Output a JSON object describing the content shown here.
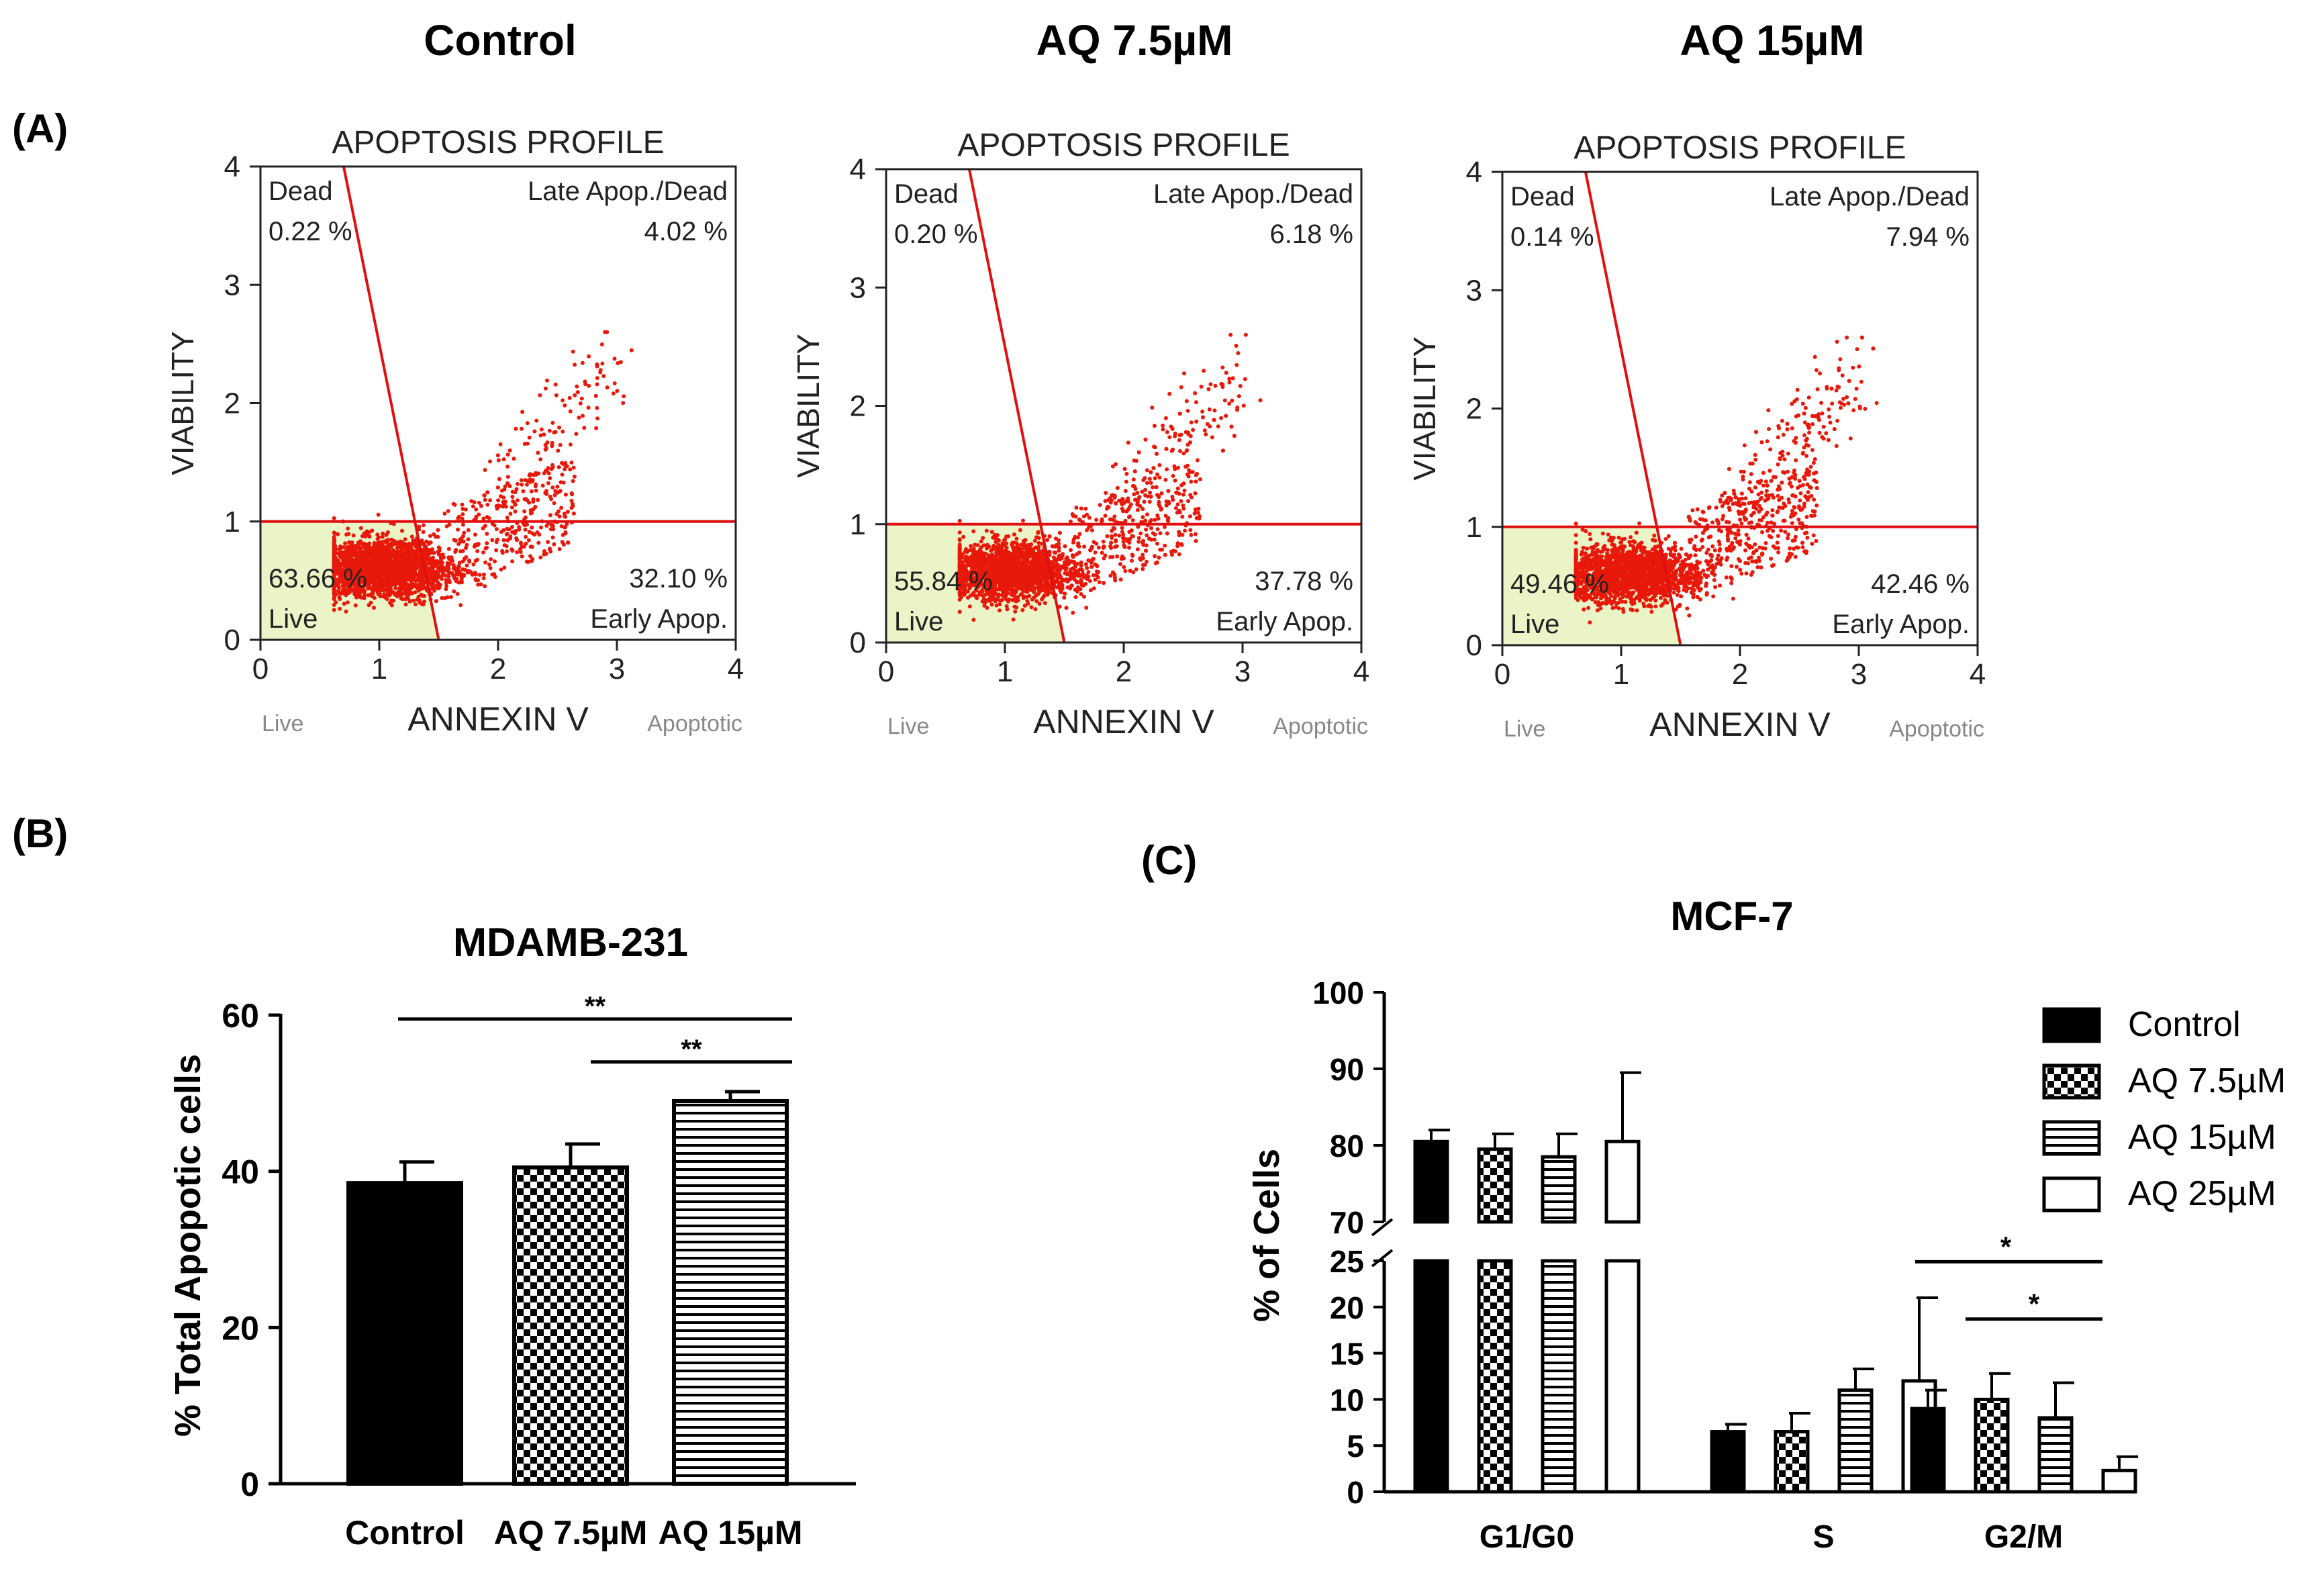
{
  "panel_labels": [
    "(A)",
    "(B)",
    "(C)"
  ],
  "panel_a_headings": [
    "Control",
    "AQ 7.5µM",
    "AQ 15µM"
  ],
  "colors": {
    "dot": "#e8190b",
    "live_fill": "#eaf4c6",
    "axis": "#000000",
    "gate_line": "#e01010",
    "flow_text": "#222222"
  },
  "chart_data": [
    {
      "type": "scatter",
      "panel": "A",
      "heading": "Control",
      "title": "APOPTOSIS PROFILE",
      "xlabel": "ANNEXIN V",
      "ylabel": "VIABILITY",
      "x_end_labels": [
        "Live",
        "Apoptotic"
      ],
      "xlim": [
        0,
        4
      ],
      "ylim": [
        0,
        4
      ],
      "xticks": [
        "0",
        "1",
        "2",
        "3",
        "4"
      ],
      "yticks": [
        "0",
        "1",
        "2",
        "3",
        "4"
      ],
      "quadrants": {
        "dead": {
          "label": "Dead",
          "value": "0.22 %"
        },
        "late": {
          "label": "Late Apop./Dead",
          "value": "4.02 %"
        },
        "live": {
          "label": "Live",
          "value": "63.66 %"
        },
        "early": {
          "label": "Early Apop.",
          "value": "32.10 %"
        }
      },
      "gates": {
        "horizontal_y": 1.0,
        "line_x_top": 0.7,
        "line_x_bottom": 1.5
      }
    },
    {
      "type": "scatter",
      "panel": "A",
      "heading": "AQ 7.5µM",
      "title": "APOPTOSIS PROFILE",
      "xlabel": "ANNEXIN V",
      "ylabel": "VIABILITY",
      "x_end_labels": [
        "Live",
        "Apoptotic"
      ],
      "xlim": [
        0,
        4
      ],
      "ylim": [
        0,
        4
      ],
      "xticks": [
        "0",
        "1",
        "2",
        "3",
        "4"
      ],
      "yticks": [
        "0",
        "1",
        "2",
        "3",
        "4"
      ],
      "quadrants": {
        "dead": {
          "label": "Dead",
          "value": "0.20 %"
        },
        "late": {
          "label": "Late Apop./Dead",
          "value": "6.18 %"
        },
        "live": {
          "label": "Live",
          "value": "55.84 %"
        },
        "early": {
          "label": "Early Apop.",
          "value": "37.78 %"
        }
      },
      "gates": {
        "horizontal_y": 1.0,
        "line_x_top": 0.7,
        "line_x_bottom": 1.5
      }
    },
    {
      "type": "scatter",
      "panel": "A",
      "heading": "AQ 15µM",
      "title": "APOPTOSIS PROFILE",
      "xlabel": "ANNEXIN V",
      "ylabel": "VIABILITY",
      "x_end_labels": [
        "Live",
        "Apoptotic"
      ],
      "xlim": [
        0,
        4
      ],
      "ylim": [
        0,
        4
      ],
      "xticks": [
        "0",
        "1",
        "2",
        "3",
        "4"
      ],
      "yticks": [
        "0",
        "1",
        "2",
        "3",
        "4"
      ],
      "quadrants": {
        "dead": {
          "label": "Dead",
          "value": "0.14 %"
        },
        "late": {
          "label": "Late Apop./Dead",
          "value": "7.94 %"
        },
        "live": {
          "label": "Live",
          "value": "49.46 %"
        },
        "early": {
          "label": "Early Apop.",
          "value": "42.46 %"
        }
      },
      "gates": {
        "horizontal_y": 1.0,
        "line_x_top": 0.7,
        "line_x_bottom": 1.5
      }
    },
    {
      "type": "bar",
      "panel": "B",
      "title": "MDAMB-231",
      "xlabel": "",
      "ylabel": "% Total Apopotic cells",
      "ylim": [
        0,
        60
      ],
      "yticks": [
        "0",
        "20",
        "40",
        "60"
      ],
      "categories": [
        "Control",
        "AQ 7.5µM",
        "AQ 15µM"
      ],
      "patterns": [
        "solid",
        "checker",
        "hstripe"
      ],
      "values": [
        38.5,
        40.5,
        49.0
      ],
      "errors": [
        2.7,
        3.0,
        1.2
      ],
      "significance": [
        {
          "from": 0,
          "to": 2,
          "label": "**",
          "y": 59.5
        },
        {
          "from": 1,
          "to": 2,
          "label": "**",
          "y": 54.0
        }
      ]
    },
    {
      "type": "bar",
      "panel": "C",
      "title": "MCF-7",
      "xlabel": "",
      "ylabel": "% of Cells",
      "ylim": [
        0,
        100
      ],
      "axis_break": [
        25,
        70
      ],
      "yticks_lower": [
        "0",
        "5",
        "10",
        "15",
        "20",
        "25"
      ],
      "yticks_upper": [
        "70",
        "80",
        "90",
        "100"
      ],
      "categories": [
        "G1/G0",
        "S",
        "G2/M"
      ],
      "series": [
        {
          "name": "Control",
          "pattern": "solid",
          "values": [
            80.5,
            6.5,
            9.0
          ],
          "errors": [
            1.5,
            0.8,
            2.0
          ]
        },
        {
          "name": "AQ 7.5µM",
          "pattern": "checker",
          "values": [
            79.5,
            6.5,
            10.0
          ],
          "errors": [
            2.0,
            2.0,
            2.8
          ]
        },
        {
          "name": "AQ 15µM",
          "pattern": "hstripe",
          "values": [
            78.5,
            11.0,
            8.0
          ],
          "errors": [
            3.0,
            2.3,
            3.8
          ]
        },
        {
          "name": "AQ 25µM",
          "pattern": "white",
          "values": [
            80.5,
            12.0,
            2.3
          ],
          "errors": [
            9.0,
            9.0,
            1.5
          ]
        }
      ],
      "significance": [
        {
          "category": "G2/M",
          "from_series": 0,
          "to_series": 3,
          "label": "*",
          "y": 24.9
        },
        {
          "category": "G2/M",
          "from_series": 1,
          "to_series": 3,
          "label": "*",
          "y": 18.7
        }
      ],
      "legend_position": "top-right"
    }
  ]
}
